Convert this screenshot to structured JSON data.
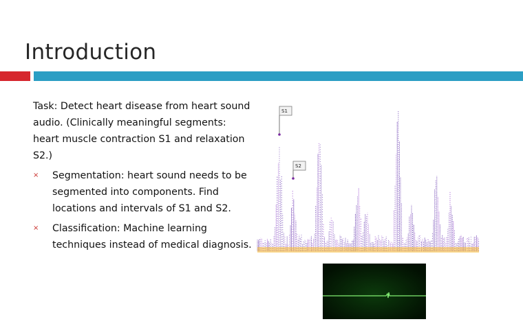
{
  "slide": {
    "title": "Introduction",
    "intro": "Task: Detect heart disease from heart sound audio. (Clinically meaningful segments: heart muscle contraction S1 and relaxation S2.)",
    "bullets": [
      {
        "marker": "×",
        "text": "Segmentation: heart sound needs to be segmented into components. Find locations and intervals of S1 and S2."
      },
      {
        "marker": "×",
        "text": "Classification:  Machine learning techniques instead of medical diagnosis."
      }
    ]
  },
  "spectrogram": {
    "labels": [
      "S1",
      "S2"
    ],
    "colors": {
      "primary": "#5b2aa8",
      "secondary": "#9b4fd0",
      "base": "#f5b82e"
    }
  },
  "ecg": {
    "colors": {
      "background": "#031503",
      "trace": "#7dff6a"
    }
  },
  "colors": {
    "title": "#262626",
    "accent_red": "#d6262d",
    "accent_blue": "#2b9ec4",
    "bullet_marker": "#c9302c"
  }
}
